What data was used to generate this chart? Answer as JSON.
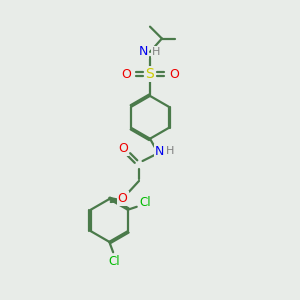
{
  "bg_color": "#e8ece8",
  "bond_color": "#4a7a4a",
  "atom_colors": {
    "N": "#0000ee",
    "O": "#ee0000",
    "S": "#cccc00",
    "Cl": "#00bb00",
    "H": "#808080",
    "C": "#4a7a4a"
  },
  "line_width": 1.6,
  "font_size": 9,
  "dbo": 0.07
}
